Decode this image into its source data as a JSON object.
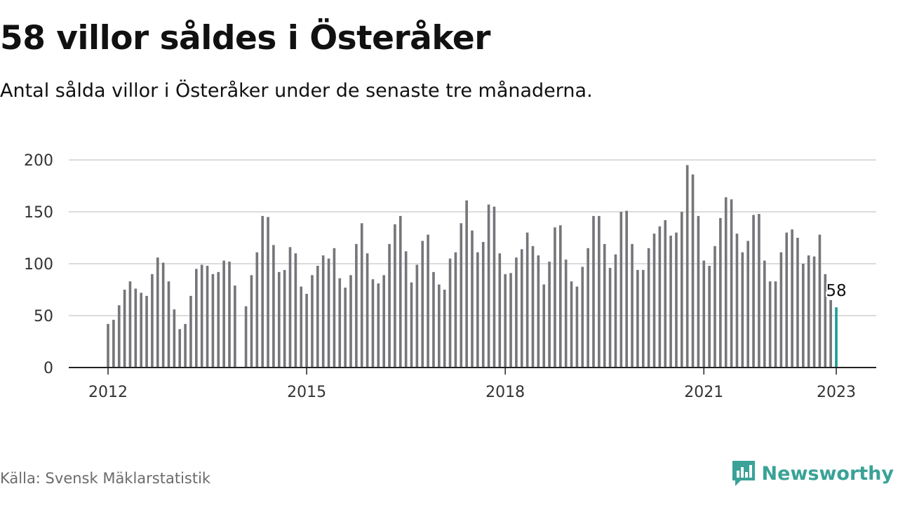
{
  "header": {
    "title": "58 villor såldes i Österåker",
    "subtitle": "Antal sålda villor i Österåker under de senaste tre månaderna."
  },
  "footer": {
    "source": "Källa: Svensk Mäklarstatistik",
    "brand": "Newsworthy"
  },
  "colors": {
    "bar": "#75757a",
    "highlight": "#1a9e93",
    "grid": "#dcdcdc",
    "axis": "#222222",
    "brand": "#3aa297"
  },
  "chart_data": {
    "type": "bar",
    "title": "58 villor såldes i Österåker",
    "subtitle": "Antal sålda villor i Österåker under de senaste tre månaderna.",
    "xlabel": "",
    "ylabel": "",
    "x_axis": "time",
    "start": "2012-01",
    "end": "2023-01",
    "frequency": "monthly",
    "xticks": [
      "2012",
      "2015",
      "2018",
      "2021",
      "2023"
    ],
    "ylim": [
      0,
      200
    ],
    "yticks": [
      0,
      50,
      100,
      150,
      200
    ],
    "grid": true,
    "highlight_label": "58",
    "values": [
      42,
      46,
      60,
      75,
      83,
      76,
      72,
      69,
      90,
      106,
      101,
      83,
      56,
      37,
      42,
      69,
      95,
      99,
      98,
      90,
      92,
      103,
      102,
      79,
      null,
      59,
      89,
      111,
      146,
      145,
      118,
      92,
      94,
      116,
      110,
      78,
      71,
      89,
      98,
      108,
      105,
      115,
      86,
      77,
      89,
      119,
      139,
      110,
      85,
      81,
      89,
      119,
      138,
      146,
      112,
      82,
      99,
      122,
      128,
      92,
      80,
      75,
      105,
      111,
      139,
      161,
      132,
      111,
      121,
      157,
      155,
      110,
      90,
      91,
      106,
      114,
      130,
      117,
      108,
      80,
      102,
      135,
      137,
      104,
      83,
      78,
      97,
      115,
      146,
      146,
      119,
      96,
      109,
      150,
      151,
      119,
      94,
      94,
      115,
      129,
      136,
      142,
      127,
      130,
      150,
      195,
      186,
      146,
      103,
      98,
      117,
      144,
      164,
      162,
      129,
      111,
      122,
      147,
      148,
      103,
      83,
      83,
      111,
      130,
      133,
      125,
      100,
      108,
      107,
      128,
      90,
      65,
      58
    ]
  }
}
